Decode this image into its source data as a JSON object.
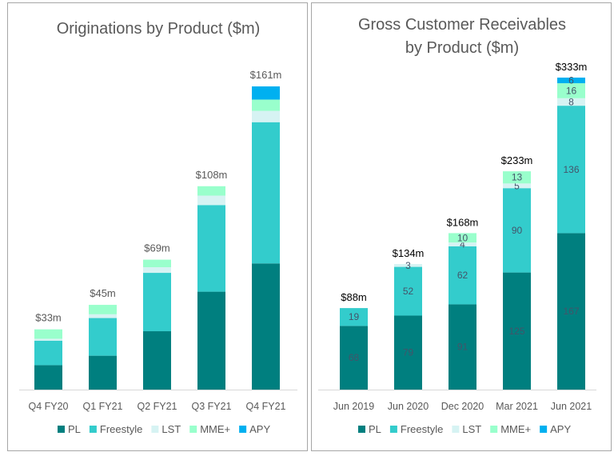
{
  "colors": {
    "PL": "#007f7f",
    "Freestyle": "#33cccc",
    "LST": "#d6f3f3",
    "MME+": "#99ffcc",
    "APY": "#00b0f0"
  },
  "chart_data": [
    {
      "type": "bar",
      "stacked": true,
      "title": "Originations by Product ($m)",
      "xlabel": "",
      "ylabel": "",
      "categories": [
        "Q4 FY20",
        "Q1 FY21",
        "Q2 FY21",
        "Q3 FY21",
        "Q4 FY21"
      ],
      "series": [
        {
          "name": "PL",
          "values": [
            13,
            18,
            31,
            52,
            67
          ]
        },
        {
          "name": "Freestyle",
          "values": [
            13,
            20,
            31,
            46,
            75
          ]
        },
        {
          "name": "LST",
          "values": [
            1,
            2,
            3,
            5,
            6
          ]
        },
        {
          "name": "MME+",
          "values": [
            5,
            5,
            4,
            5,
            6
          ]
        },
        {
          "name": "APY",
          "values": [
            0,
            0,
            0,
            0,
            7
          ]
        }
      ],
      "totals": [
        "$33m",
        "$45m",
        "$69m",
        "$108m",
        "$161m"
      ],
      "segment_labels_shown": false,
      "ylim": [
        0,
        161
      ],
      "grid": false,
      "legend": [
        "PL",
        "Freestyle",
        "LST",
        "MME+",
        "APY"
      ],
      "legend_position": "bottom"
    },
    {
      "type": "bar",
      "stacked": true,
      "title": "Gross Customer Receivables by Product ($m)",
      "title_lines": [
        "Gross Customer Receivables",
        "by Product ($m)"
      ],
      "xlabel": "",
      "ylabel": "",
      "categories": [
        "Jun 2019",
        "Jun 2020",
        "Dec 2020",
        "Mar 2021",
        "Jun 2021"
      ],
      "series": [
        {
          "name": "PL",
          "values": [
            68,
            79,
            91,
            125,
            167
          ]
        },
        {
          "name": "Freestyle",
          "values": [
            19,
            52,
            62,
            90,
            136
          ]
        },
        {
          "name": "LST",
          "values": [
            0,
            3,
            4,
            5,
            8
          ]
        },
        {
          "name": "MME+",
          "values": [
            0,
            0,
            10,
            13,
            16
          ]
        },
        {
          "name": "APY",
          "values": [
            0,
            0,
            0,
            0,
            6
          ]
        }
      ],
      "totals": [
        "$88m",
        "$134m",
        "$168m",
        "$233m",
        "$333m"
      ],
      "segment_labels_shown": true,
      "ylim": [
        0,
        333
      ],
      "grid": false,
      "legend": [
        "PL",
        "Freestyle",
        "LST",
        "MME+",
        "APY"
      ],
      "legend_position": "bottom"
    }
  ]
}
